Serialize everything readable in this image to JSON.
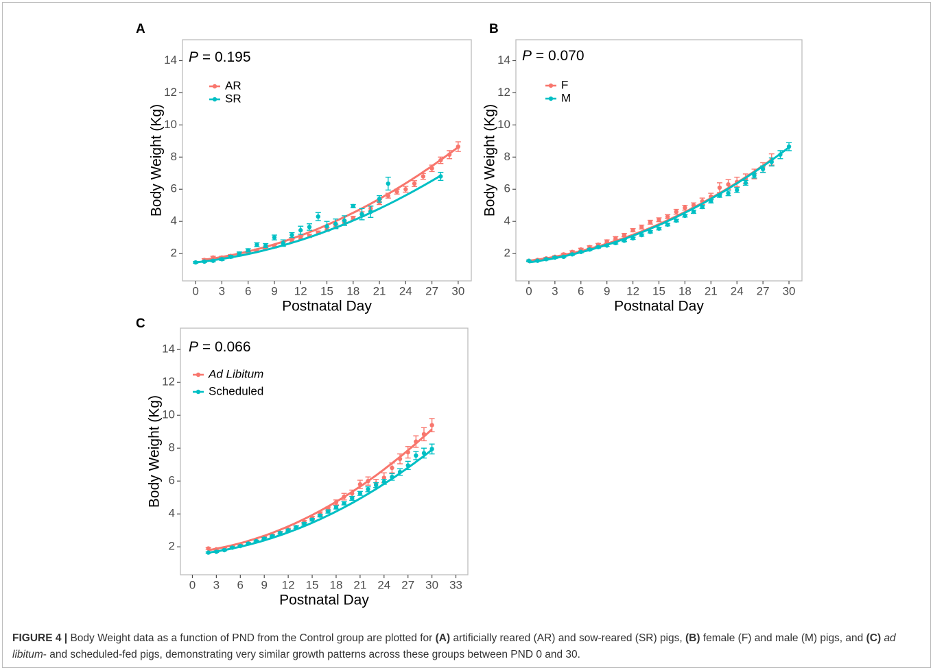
{
  "caption": {
    "figure_label": "FIGURE 4 |",
    "parts": [
      {
        "text": " Body Weight data as a function of PND from the Control group are plotted for ",
        "style": "normal"
      },
      {
        "text": "(A)",
        "style": "bold"
      },
      {
        "text": " artificially reared (AR) and sow-reared (SR) pigs, ",
        "style": "normal"
      },
      {
        "text": "(B)",
        "style": "bold"
      },
      {
        "text": " female (F) and male (M) pigs, and ",
        "style": "normal"
      },
      {
        "text": "(C)",
        "style": "bold"
      },
      {
        "text": " ",
        "style": "normal"
      },
      {
        "text": "ad libitum",
        "style": "italic"
      },
      {
        "text": "- and scheduled-fed pigs, demonstrating very similar growth patterns across these groups between PND 0 and 30.",
        "style": "normal"
      }
    ]
  },
  "colors": {
    "series1": "#F8766D",
    "series2": "#00BFC4",
    "axis": "#4d4d4d",
    "panel_border": "#bdbdbd"
  },
  "chart_data": [
    {
      "panel": "A",
      "type": "line",
      "annotation": {
        "italic": "P",
        "rest": " = 0.195"
      },
      "xlabel": "Postnatal Day",
      "ylabel": "Body Weight (Kg)",
      "xlim": [
        -1.5,
        31.5
      ],
      "ylim": [
        0.3,
        15.3
      ],
      "xticks": [
        0,
        3,
        6,
        9,
        12,
        15,
        18,
        21,
        24,
        27,
        30
      ],
      "yticks": [
        2,
        4,
        6,
        8,
        10,
        12,
        14
      ],
      "series": [
        {
          "name": "AR",
          "italic": false,
          "color": "#F8766D",
          "x": [
            1,
            2,
            3,
            4,
            5,
            6,
            7,
            8,
            9,
            10,
            11,
            12,
            13,
            14,
            15,
            16,
            17,
            18,
            19,
            20,
            21,
            22,
            23,
            24,
            25,
            26,
            27,
            28,
            29,
            30
          ],
          "y": [
            1.6,
            1.75,
            1.75,
            1.85,
            1.95,
            2.05,
            2.2,
            2.35,
            2.45,
            2.6,
            2.8,
            2.95,
            3.1,
            3.3,
            3.5,
            3.7,
            3.9,
            4.2,
            4.45,
            4.8,
            5.2,
            5.6,
            5.85,
            6.0,
            6.35,
            6.8,
            7.3,
            7.8,
            8.15,
            8.65
          ],
          "err": [
            0.08,
            0.08,
            0.08,
            0.08,
            0.08,
            0.08,
            0.08,
            0.08,
            0.1,
            0.1,
            0.1,
            0.1,
            0.1,
            0.1,
            0.12,
            0.12,
            0.12,
            0.12,
            0.15,
            0.15,
            0.15,
            0.15,
            0.15,
            0.18,
            0.18,
            0.18,
            0.2,
            0.2,
            0.25,
            0.3
          ],
          "fit": [
            1.62,
            8.62
          ]
        },
        {
          "name": "SR",
          "italic": false,
          "color": "#00BFC4",
          "x": [
            0,
            1,
            2,
            3,
            4,
            5,
            6,
            7,
            8,
            9,
            10,
            11,
            12,
            13,
            14,
            15,
            16,
            17,
            18,
            19,
            20,
            21,
            22,
            28
          ],
          "y": [
            1.45,
            1.5,
            1.55,
            1.65,
            1.8,
            2.0,
            2.2,
            2.55,
            2.5,
            3.0,
            2.65,
            3.15,
            3.45,
            3.65,
            4.3,
            3.7,
            3.85,
            4.05,
            4.95,
            4.45,
            4.6,
            5.4,
            6.35,
            6.8
          ],
          "err": [
            0.05,
            0.05,
            0.06,
            0.08,
            0.08,
            0.1,
            0.1,
            0.12,
            0.12,
            0.15,
            0.2,
            0.15,
            0.25,
            0.2,
            0.25,
            0.3,
            0.3,
            0.3,
            0.1,
            0.35,
            0.35,
            0.2,
            0.4,
            0.25
          ],
          "fit": [
            1.45,
            6.85
          ]
        }
      ],
      "legend": "top-left",
      "grid": false
    },
    {
      "panel": "B",
      "type": "line",
      "annotation": {
        "italic": "P",
        "rest": " = 0.070"
      },
      "xlabel": "Postnatal Day",
      "ylabel": "Body Weight (Kg)",
      "xlim": [
        -1.5,
        31.5
      ],
      "ylim": [
        0.3,
        15.3
      ],
      "xticks": [
        0,
        3,
        6,
        9,
        12,
        15,
        18,
        21,
        24,
        27,
        30
      ],
      "yticks": [
        2,
        4,
        6,
        8,
        10,
        12,
        14
      ],
      "series": [
        {
          "name": "F",
          "italic": false,
          "color": "#F8766D",
          "x": [
            0,
            1,
            2,
            3,
            4,
            5,
            6,
            7,
            8,
            9,
            10,
            11,
            12,
            13,
            14,
            15,
            16,
            17,
            18,
            19,
            20,
            21,
            22,
            23,
            24,
            25,
            26,
            27,
            28
          ],
          "y": [
            1.55,
            1.6,
            1.7,
            1.8,
            1.95,
            2.1,
            2.25,
            2.4,
            2.55,
            2.75,
            2.95,
            3.15,
            3.45,
            3.65,
            3.95,
            4.1,
            4.3,
            4.6,
            4.85,
            5.0,
            5.25,
            5.55,
            6.1,
            6.3,
            6.45,
            6.65,
            6.95,
            7.35,
            7.85
          ],
          "err": [
            0.05,
            0.05,
            0.06,
            0.06,
            0.07,
            0.07,
            0.08,
            0.08,
            0.08,
            0.1,
            0.1,
            0.1,
            0.1,
            0.12,
            0.12,
            0.12,
            0.12,
            0.15,
            0.15,
            0.15,
            0.2,
            0.2,
            0.3,
            0.3,
            0.3,
            0.3,
            0.3,
            0.3,
            0.35
          ],
          "fit": [
            1.55,
            7.85
          ],
          "fit_x": [
            0,
            28
          ]
        },
        {
          "name": "M",
          "italic": false,
          "color": "#00BFC4",
          "x": [
            0,
            1,
            2,
            3,
            4,
            5,
            6,
            7,
            8,
            9,
            10,
            11,
            12,
            13,
            14,
            15,
            16,
            17,
            18,
            19,
            20,
            21,
            22,
            23,
            24,
            25,
            26,
            27,
            28,
            29,
            30
          ],
          "y": [
            1.55,
            1.55,
            1.65,
            1.75,
            1.8,
            1.95,
            2.1,
            2.25,
            2.4,
            2.5,
            2.65,
            2.8,
            2.95,
            3.15,
            3.35,
            3.55,
            3.8,
            4.05,
            4.35,
            4.6,
            4.9,
            5.25,
            5.6,
            5.75,
            5.95,
            6.4,
            6.85,
            7.25,
            7.7,
            8.15,
            8.65
          ],
          "err": [
            0.04,
            0.04,
            0.05,
            0.05,
            0.05,
            0.05,
            0.05,
            0.06,
            0.06,
            0.06,
            0.06,
            0.06,
            0.07,
            0.07,
            0.07,
            0.08,
            0.08,
            0.08,
            0.08,
            0.1,
            0.1,
            0.1,
            0.1,
            0.15,
            0.15,
            0.15,
            0.15,
            0.2,
            0.25,
            0.25,
            0.25
          ],
          "fit": [
            1.45,
            8.6
          ]
        }
      ],
      "legend": "top-left",
      "grid": false
    },
    {
      "panel": "C",
      "type": "line",
      "annotation": {
        "italic": "P",
        "rest": " = 0.066"
      },
      "xlabel": "Postnatal Day",
      "ylabel": "Body Weight (Kg)",
      "xlim": [
        -1.5,
        34.5
      ],
      "ylim": [
        0.3,
        15.3
      ],
      "xticks": [
        0,
        3,
        6,
        9,
        12,
        15,
        18,
        21,
        24,
        27,
        30,
        33
      ],
      "yticks": [
        2,
        4,
        6,
        8,
        10,
        12,
        14
      ],
      "series": [
        {
          "name": "Ad Libitum",
          "italic": true,
          "color": "#F8766D",
          "x": [
            2,
            3,
            4,
            5,
            6,
            7,
            8,
            9,
            10,
            11,
            12,
            13,
            14,
            15,
            16,
            17,
            18,
            19,
            20,
            21,
            22,
            23,
            24,
            25,
            26,
            27,
            28,
            29,
            30
          ],
          "y": [
            1.9,
            1.85,
            1.9,
            2.0,
            2.1,
            2.2,
            2.35,
            2.55,
            2.7,
            2.85,
            3.05,
            3.2,
            3.5,
            3.75,
            4.0,
            4.3,
            4.7,
            5.05,
            5.25,
            5.8,
            6.0,
            5.85,
            6.2,
            6.8,
            7.35,
            7.75,
            8.4,
            8.85,
            9.4
          ],
          "err": [
            0.05,
            0.05,
            0.05,
            0.05,
            0.05,
            0.06,
            0.06,
            0.07,
            0.07,
            0.08,
            0.08,
            0.08,
            0.1,
            0.1,
            0.12,
            0.12,
            0.15,
            0.2,
            0.2,
            0.25,
            0.25,
            0.25,
            0.3,
            0.3,
            0.3,
            0.35,
            0.35,
            0.4,
            0.4
          ],
          "fit": [
            1.8,
            9.15
          ]
        },
        {
          "name": "Scheduled",
          "italic": false,
          "color": "#00BFC4",
          "x": [
            2,
            3,
            4,
            5,
            6,
            7,
            8,
            9,
            10,
            11,
            12,
            13,
            14,
            15,
            16,
            17,
            18,
            19,
            20,
            21,
            22,
            23,
            24,
            25,
            26,
            27,
            28,
            29,
            30
          ],
          "y": [
            1.65,
            1.7,
            1.8,
            1.95,
            2.05,
            2.2,
            2.35,
            2.5,
            2.65,
            2.85,
            3.0,
            3.2,
            3.4,
            3.65,
            3.9,
            4.15,
            4.4,
            4.65,
            4.95,
            5.25,
            5.5,
            5.75,
            5.95,
            6.25,
            6.55,
            6.95,
            7.55,
            7.7,
            7.95
          ],
          "err": [
            0.04,
            0.04,
            0.04,
            0.05,
            0.05,
            0.05,
            0.05,
            0.06,
            0.06,
            0.06,
            0.07,
            0.07,
            0.08,
            0.08,
            0.08,
            0.1,
            0.1,
            0.1,
            0.12,
            0.12,
            0.15,
            0.15,
            0.15,
            0.2,
            0.2,
            0.25,
            0.25,
            0.3,
            0.3
          ],
          "fit": [
            1.65,
            7.9
          ]
        }
      ],
      "legend": "top-left",
      "grid": false
    }
  ]
}
